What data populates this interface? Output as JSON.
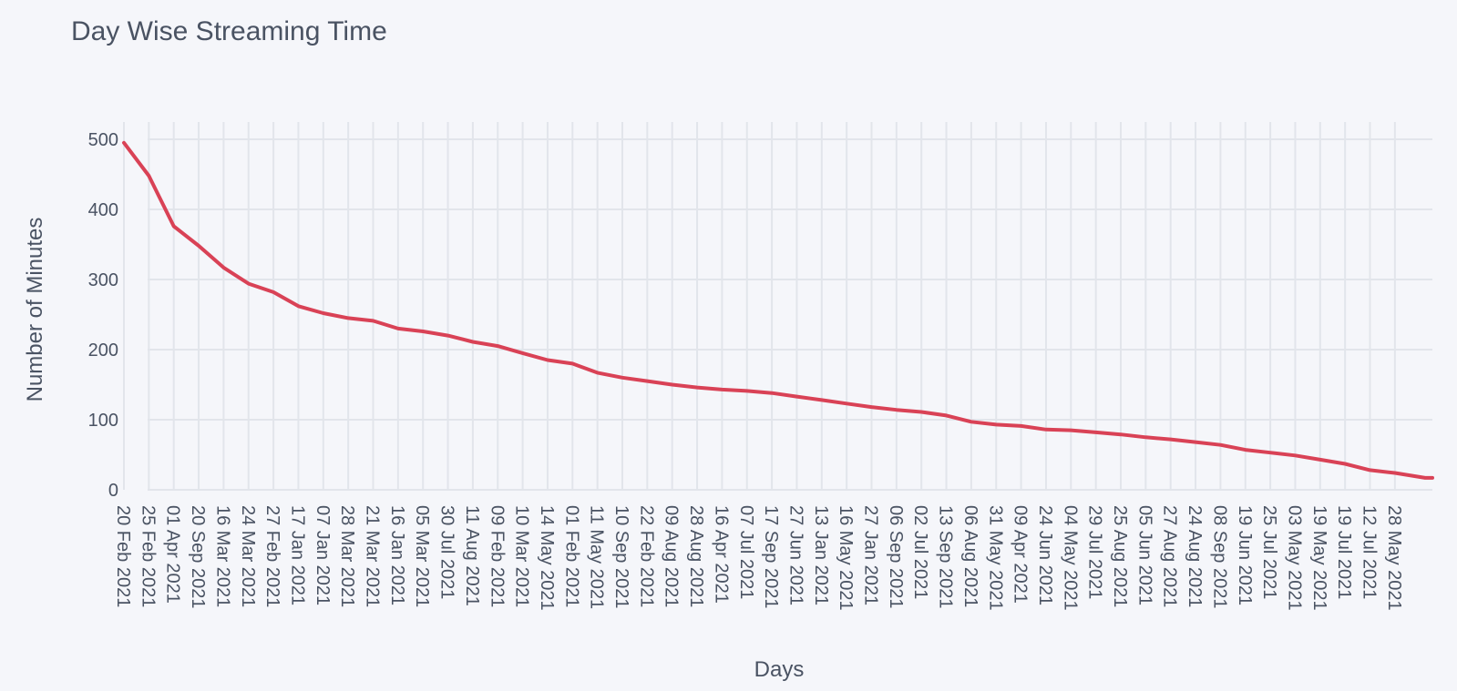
{
  "chart_data": {
    "type": "line",
    "title": "Day Wise Streaming Time",
    "xlabel": "Days",
    "ylabel": "Number of Minutes",
    "ylim": [
      0,
      520
    ],
    "yticks": [
      0,
      100,
      200,
      300,
      400,
      500
    ],
    "grid": true,
    "line_color": "#d94256",
    "x": [
      "20 Feb 2021",
      "25 Feb 2021",
      "01 Apr 2021",
      "20 Sep 2021",
      "16 Mar 2021",
      "24 Mar 2021",
      "27 Feb 2021",
      "17 Jan 2021",
      "07 Jan 2021",
      "28 Mar 2021",
      "21 Mar 2021",
      "16 Jan 2021",
      "05 Mar 2021",
      "30 Jul 2021",
      "11 Aug 2021",
      "09 Feb 2021",
      "10 Mar 2021",
      "14 May 2021",
      "01 Feb 2021",
      "11 May 2021",
      "10 Sep 2021",
      "22 Feb 2021",
      "09 Aug 2021",
      "28 Aug 2021",
      "16 Apr 2021",
      "07 Jul 2021",
      "17 Sep 2021",
      "27 Jun 2021",
      "13 Jan 2021",
      "16 May 2021",
      "27 Jan 2021",
      "06 Sep 2021",
      "02 Jul 2021",
      "13 Sep 2021",
      "06 Aug 2021",
      "31 May 2021",
      "09 Apr 2021",
      "24 Jun 2021",
      "04 May 2021",
      "29 Jul 2021",
      "25 Aug 2021",
      "05 Jun 2021",
      "27 Aug 2021",
      "24 Aug 2021",
      "08 Sep 2021",
      "19 Jun 2021",
      "25 Jul 2021",
      "03 May 2021",
      "19 May 2021",
      "19 Jul 2021",
      "12 Jul 2021",
      "28 May 2021"
    ],
    "values": [
      495,
      448,
      376,
      348,
      317,
      294,
      282,
      262,
      252,
      245,
      241,
      230,
      226,
      220,
      211,
      205,
      195,
      185,
      180,
      167,
      160,
      155,
      150,
      146,
      143,
      141,
      138,
      133,
      128,
      123,
      118,
      114,
      111,
      106,
      97,
      93,
      91,
      86,
      85,
      82,
      79,
      75,
      72,
      68,
      64,
      57,
      53,
      49,
      43,
      37,
      28,
      24
    ]
  }
}
